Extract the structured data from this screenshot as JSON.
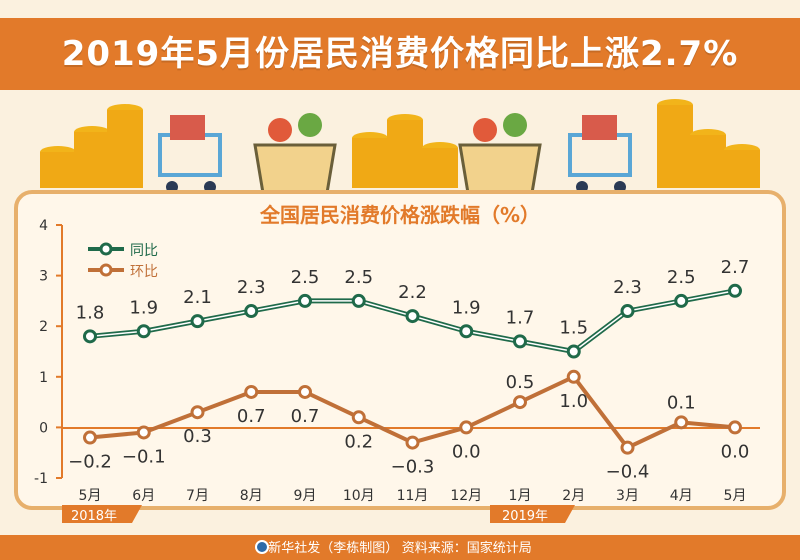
{
  "header": {
    "title": "2019年5月份居民消费价格同比上涨2.7%"
  },
  "footer": {
    "credit": "新华社发（李栋制图）  资料来源：国家统计局"
  },
  "colors": {
    "header_bg": "#e27a2a",
    "card_border": "#e7b06c",
    "series_yoy": "#1f6a4a",
    "series_mom": "#c07038"
  },
  "chart_data": {
    "type": "line",
    "title": "全国居民消费价格涨跌幅（%）",
    "categories": [
      "5月",
      "6月",
      "7月",
      "8月",
      "9月",
      "10月",
      "11月",
      "12月",
      "1月",
      "2月",
      "3月",
      "4月",
      "5月"
    ],
    "year_labels": [
      "2018年",
      "2019年"
    ],
    "ylim": [
      -1,
      4
    ],
    "y_ticks": [
      4,
      3,
      2,
      1,
      0,
      -1
    ],
    "series": [
      {
        "name": "同比",
        "values": [
          1.8,
          1.9,
          2.1,
          2.3,
          2.5,
          2.5,
          2.2,
          1.9,
          1.7,
          1.5,
          2.3,
          2.5,
          2.7
        ],
        "color": "#1f6a4a"
      },
      {
        "name": "环比",
        "values": [
          -0.2,
          -0.1,
          0.3,
          0.7,
          0.7,
          0.2,
          -0.3,
          0.0,
          0.5,
          1.0,
          -0.4,
          0.1,
          0.0
        ],
        "color": "#c07038"
      }
    ],
    "labels": {
      "yoy": [
        "1.8",
        "1.9",
        "2.1",
        "2.3",
        "2.5",
        "2.5",
        "2.2",
        "1.9",
        "1.7",
        "1.5",
        "2.3",
        "2.5",
        "2.7"
      ],
      "mom": [
        "−0.2",
        "−0.1",
        "0.3",
        "0.7",
        "0.7",
        "0.2",
        "−0.3",
        "0.0",
        "0.5",
        "1.0",
        "−0.4",
        "0.1",
        "0.0"
      ]
    },
    "grid": false,
    "legend": "top-left"
  },
  "decorations": {
    "icons": [
      "coin-stack-icon",
      "shopping-cart-icon",
      "grocery-basket-icon",
      "coin-stack-icon",
      "grocery-basket-icon",
      "shopping-cart-icon",
      "coin-stack-icon"
    ]
  }
}
